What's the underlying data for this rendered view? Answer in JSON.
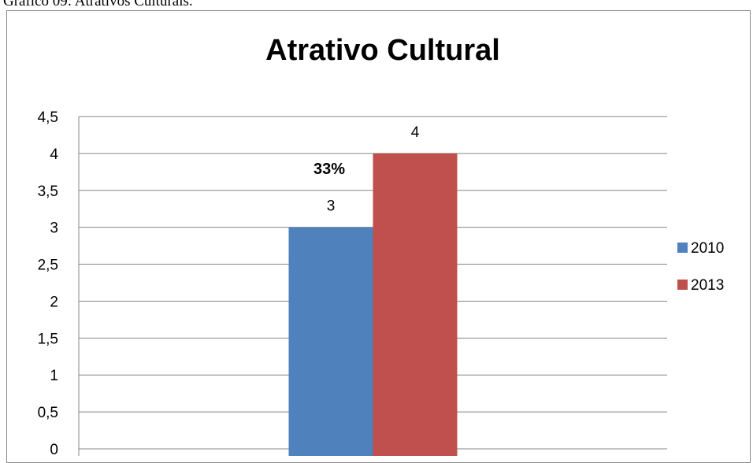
{
  "caption": "Gráfico 09: Atrativos Culturais.",
  "chart_data": {
    "type": "bar",
    "title": "Atrativo Cultural",
    "categories": [
      ""
    ],
    "series": [
      {
        "name": "2010",
        "values": [
          3
        ],
        "color": "#4f81bd"
      },
      {
        "name": "2013",
        "values": [
          4
        ],
        "color": "#c0504d"
      }
    ],
    "ylim": [
      0,
      4.5
    ],
    "yticks": [
      "0",
      "0,5",
      "1",
      "1,5",
      "2",
      "2,5",
      "3",
      "3,5",
      "4",
      "4,5"
    ],
    "ytick_values": [
      0,
      0.5,
      1,
      1.5,
      2,
      2.5,
      3,
      3.5,
      4,
      4.5
    ],
    "data_labels": [
      "3",
      "4"
    ],
    "annotation": "33%",
    "grid": true,
    "legend_position": "right"
  }
}
